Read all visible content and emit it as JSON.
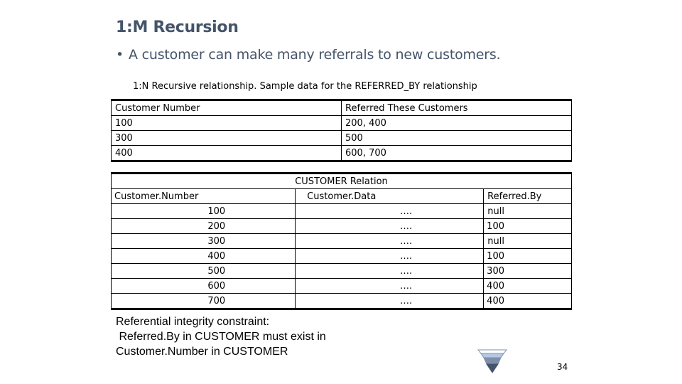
{
  "slide": {
    "title": "1:M Recursion",
    "bullet": "A customer can make many referrals to new customers.",
    "page_number": "34"
  },
  "referrals_table": {
    "caption": "1:N Recursive relationship. Sample data for the REFERRED_BY relationship",
    "headers": [
      "Customer Number",
      "Referred These Customers"
    ],
    "rows": [
      [
        "100",
        "200, 400"
      ],
      [
        "300",
        "500"
      ],
      [
        "400",
        "600, 700"
      ]
    ]
  },
  "customer_table": {
    "caption": "CUSTOMER Relation",
    "headers": [
      "Customer.Number",
      "Customer.Data",
      "Referred.By"
    ],
    "rows": [
      [
        "100",
        "….",
        "null"
      ],
      [
        "200",
        "….",
        "100"
      ],
      [
        "300",
        "….",
        "null"
      ],
      [
        "400",
        "….",
        "100"
      ],
      [
        "500",
        "….",
        "300"
      ],
      [
        "600",
        "….",
        "400"
      ],
      [
        "700",
        "….",
        "400"
      ]
    ]
  },
  "constraint_note": {
    "line1": "Referential integrity constraint:",
    "line2": " Referred.By in CUSTOMER must exist in",
    "line3": "Customer.Number in CUSTOMER"
  },
  "funnel_icon": {
    "icon": "funnel-icon",
    "colors": [
      "#ffffff",
      "#b4c7e7",
      "#7f8fa9",
      "#44546a"
    ]
  }
}
